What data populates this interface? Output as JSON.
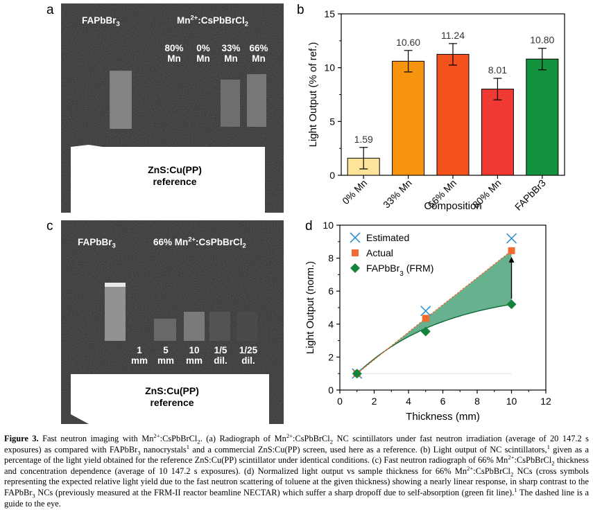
{
  "panels": {
    "a": {
      "letter": "a",
      "label_fa": "FAPbBr",
      "label_fa_sub": "3",
      "label_mn_prefix": "Mn",
      "label_mn_sup": "2+",
      "label_mn_suffix": ":CsPbBrCl",
      "label_mn_sub": "2",
      "samples": [
        {
          "pct": "80%",
          "mn": "Mn"
        },
        {
          "pct": "0%",
          "mn": "Mn"
        },
        {
          "pct": "33%",
          "mn": "Mn"
        },
        {
          "pct": "66%",
          "mn": "Mn"
        }
      ],
      "reference_line1": "ZnS:Cu(PP)",
      "reference_line2": "reference"
    },
    "c": {
      "letter": "c",
      "label_fa": "FAPbBr",
      "label_fa_sub": "3",
      "label_mn_prefix": "66% Mn",
      "label_mn_sup": "2+",
      "label_mn_suffix": ":CsPbBrCl",
      "label_mn_sub": "2",
      "samples": [
        {
          "top": "1",
          "bottom": "mm"
        },
        {
          "top": "5",
          "bottom": "mm"
        },
        {
          "top": "10",
          "bottom": "mm"
        },
        {
          "top": "1/5",
          "bottom": "dil."
        },
        {
          "top": "1/25",
          "bottom": "dil."
        }
      ],
      "reference_line1": "ZnS:Cu(PP)",
      "reference_line2": "reference"
    },
    "b": {
      "letter": "b"
    },
    "d": {
      "letter": "d"
    }
  },
  "chart_data": [
    {
      "type": "bar",
      "panel": "b",
      "categories": [
        "0% Mn",
        "33% Mn",
        "66% Mn",
        "80% Mn",
        "FAPbBr3"
      ],
      "values": [
        1.59,
        10.6,
        11.24,
        8.01,
        10.8
      ],
      "value_labels": [
        "1.59",
        "10.60",
        "11.24",
        "8.01",
        "10.80"
      ],
      "errors": [
        1.0,
        1.0,
        1.0,
        1.0,
        1.0
      ],
      "colors": [
        "#fde49a",
        "#f7940f",
        "#f4521d",
        "#ef3a33",
        "#13923e"
      ],
      "xlabel": "Composition",
      "ylabel": "Light Output (% of ref.)",
      "ylim": [
        0,
        15
      ],
      "yticks": [
        "0",
        "5",
        "10",
        "15"
      ]
    },
    {
      "type": "scatter",
      "panel": "d",
      "xlabel": "Thickness (mm)",
      "ylabel": "Light Output (norm.)",
      "xlim": [
        0,
        12
      ],
      "ylim": [
        0,
        10
      ],
      "xticks": [
        "0",
        "2",
        "4",
        "6",
        "8",
        "10",
        "12"
      ],
      "yticks": [
        "0",
        "2",
        "4",
        "6",
        "8",
        "10"
      ],
      "legend_position": "top-left",
      "series": [
        {
          "name": "Estimated",
          "marker": "x",
          "color": "#2f8fd0",
          "x": [
            1,
            5,
            10
          ],
          "y": [
            1.0,
            4.8,
            9.2
          ]
        },
        {
          "name": "Actual",
          "marker": "square",
          "color": "#f26a2e",
          "x": [
            1,
            5,
            10
          ],
          "y": [
            1.0,
            4.35,
            8.45
          ]
        },
        {
          "name_prefix": "FAPbBr",
          "name_sub": "3",
          "name_suffix": " (FRM)",
          "marker": "diamond",
          "color": "#14833b",
          "x": [
            1,
            5,
            10
          ],
          "y": [
            1.0,
            3.55,
            5.2
          ]
        }
      ]
    }
  ],
  "caption": {
    "fig_label": "Figure 3.",
    "title_prefix": " Fast neutron imaging with Mn",
    "title_sup": "2+",
    "title_mid": ":CsPbBrCl",
    "title_sub": "2",
    "title_end": ".",
    "s1": " (a) Radiograph of Mn",
    "s1_sup": "2+",
    "s2": ":CsPbBrCl",
    "s2_sub": "2",
    "s3": " NC scintillators under fast neutron irradiation (average of 20 147.2 s exposures) as compared with FAPbBr",
    "s3_sub": "3",
    "s4": " nanocrystals",
    "s4_sup": "1",
    "s5": " and a commercial ZnS:Cu(PP) screen, used here as a reference. (b) Light output of NC scintillators,",
    "s5_sup": "1",
    "s6": " given as a percentage of the light yield obtained for the reference ZnS:Cu(PP) scintillator under identical conditions. (c) Fast neutron radiograph of 66% Mn",
    "s6_sup": "2+",
    "s7": ":CsPbBrCl",
    "s7_sub": "2",
    "s8": " thickness and concentration dependence (average of 10 147.2 s exposures). (d) Normalized light output vs sample thickness for 66% Mn",
    "s8_sup": "2+",
    "s9": ":CsPbBrCl",
    "s9_sub": "2",
    "s10": " NCs (cross symbols representing the expected relative light yield due to the fast neutron scattering of toluene at the given thickness) showing a nearly linear response, in sharp contrast to the FAPbBr",
    "s10_sub": "3",
    "s11": " NCs (previously measured at the FRM-II reactor beamline NECTAR) which suffer a sharp dropoff due to self-absorption (green fit line).",
    "s11_sup": "1",
    "s12": " The dashed line is a guide to the eye."
  }
}
